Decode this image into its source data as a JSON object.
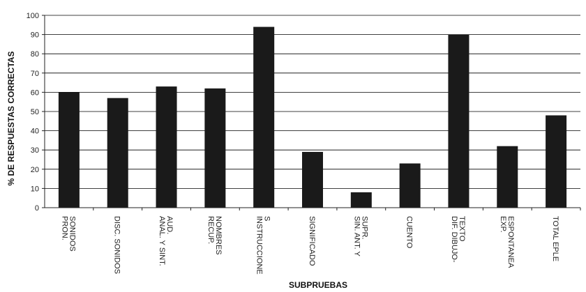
{
  "chart_data": {
    "type": "bar",
    "title": "",
    "xlabel": "SUBPRUEBAS",
    "ylabel": "% DE RESPUESTAS CORRECTAS",
    "ylim": [
      0,
      100
    ],
    "yticks": [
      0,
      10,
      20,
      30,
      40,
      50,
      60,
      70,
      80,
      90,
      100
    ],
    "grid": true,
    "bar_color": "#1a1a1a",
    "categories": [
      [
        "PRON.",
        "SONIDOS"
      ],
      [
        "DISC. SONIDOS"
      ],
      [
        "ANAL. Y SINT.",
        "AUD."
      ],
      [
        "RECUP.",
        "NOMBRES"
      ],
      [
        "INSTRUCCIONE",
        "S"
      ],
      [
        "SIGNIFICADO"
      ],
      [
        "SIN. ANT. Y",
        "SUPR."
      ],
      [
        "CUENTO"
      ],
      [
        "DIF. DIBUJO-",
        "TEXTO"
      ],
      [
        "EXP.",
        "ESPONTANEA"
      ],
      [
        "TOTAL EPLE"
      ]
    ],
    "values": [
      60,
      57,
      63,
      62,
      94,
      29,
      8,
      23,
      90,
      32,
      48
    ]
  }
}
